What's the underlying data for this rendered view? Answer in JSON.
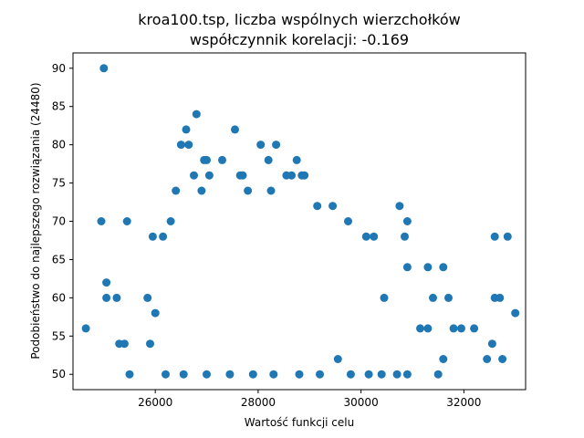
{
  "chart_data": {
    "type": "scatter",
    "title_lines": [
      "kroa100.tsp, liczba wspólnych wierzchołków",
      "współczynnik korelacji: -0.169"
    ],
    "xlabel": "Wartość funkcji celu",
    "ylabel": "Podobieństwo do najlepszego rozwiązania (24480)",
    "xlim": [
      24400,
      33200
    ],
    "ylim": [
      48,
      92
    ],
    "x_ticks": [
      26000,
      28000,
      30000,
      32000
    ],
    "y_ticks": [
      50,
      55,
      60,
      65,
      70,
      75,
      80,
      85,
      90
    ],
    "marker_color": "#1f77b4",
    "grid": false,
    "legend": "none",
    "points": [
      [
        24650,
        56
      ],
      [
        25000,
        90
      ],
      [
        24950,
        70
      ],
      [
        25050,
        62
      ],
      [
        25050,
        60
      ],
      [
        25250,
        60
      ],
      [
        25300,
        54
      ],
      [
        25400,
        54
      ],
      [
        25500,
        50
      ],
      [
        25450,
        70
      ],
      [
        25850,
        60
      ],
      [
        25900,
        54
      ],
      [
        25950,
        68
      ],
      [
        26000,
        58
      ],
      [
        26150,
        68
      ],
      [
        26300,
        70
      ],
      [
        26400,
        74
      ],
      [
        26500,
        80
      ],
      [
        26600,
        82
      ],
      [
        26650,
        80
      ],
      [
        26800,
        84
      ],
      [
        26750,
        76
      ],
      [
        26900,
        74
      ],
      [
        26950,
        78
      ],
      [
        27000,
        78
      ],
      [
        27050,
        76
      ],
      [
        27300,
        78
      ],
      [
        27550,
        82
      ],
      [
        27650,
        76
      ],
      [
        27700,
        76
      ],
      [
        27800,
        74
      ],
      [
        28050,
        80
      ],
      [
        28200,
        78
      ],
      [
        28350,
        80
      ],
      [
        28250,
        74
      ],
      [
        28550,
        76
      ],
      [
        28750,
        78
      ],
      [
        28850,
        76
      ],
      [
        28900,
        76
      ],
      [
        28650,
        76
      ],
      [
        29150,
        72
      ],
      [
        29450,
        72
      ],
      [
        29750,
        70
      ],
      [
        30100,
        68
      ],
      [
        30250,
        68
      ],
      [
        30450,
        60
      ],
      [
        30750,
        72
      ],
      [
        30900,
        70
      ],
      [
        30850,
        68
      ],
      [
        30900,
        64
      ],
      [
        31300,
        64
      ],
      [
        31400,
        60
      ],
      [
        31600,
        64
      ],
      [
        31700,
        60
      ],
      [
        31800,
        56
      ],
      [
        31950,
        56
      ],
      [
        32200,
        56
      ],
      [
        32450,
        52
      ],
      [
        32550,
        54
      ],
      [
        32600,
        68
      ],
      [
        32850,
        68
      ],
      [
        32600,
        60
      ],
      [
        32700,
        60
      ],
      [
        32750,
        52
      ],
      [
        33000,
        58
      ],
      [
        31500,
        50
      ],
      [
        31600,
        52
      ],
      [
        31150,
        56
      ],
      [
        31300,
        56
      ],
      [
        30700,
        50
      ],
      [
        30900,
        50
      ],
      [
        30400,
        50
      ],
      [
        30150,
        50
      ],
      [
        29800,
        50
      ],
      [
        29550,
        52
      ],
      [
        29200,
        50
      ],
      [
        28800,
        50
      ],
      [
        28300,
        50
      ],
      [
        27900,
        50
      ],
      [
        27450,
        50
      ],
      [
        27000,
        50
      ],
      [
        26550,
        50
      ],
      [
        26200,
        50
      ]
    ]
  }
}
